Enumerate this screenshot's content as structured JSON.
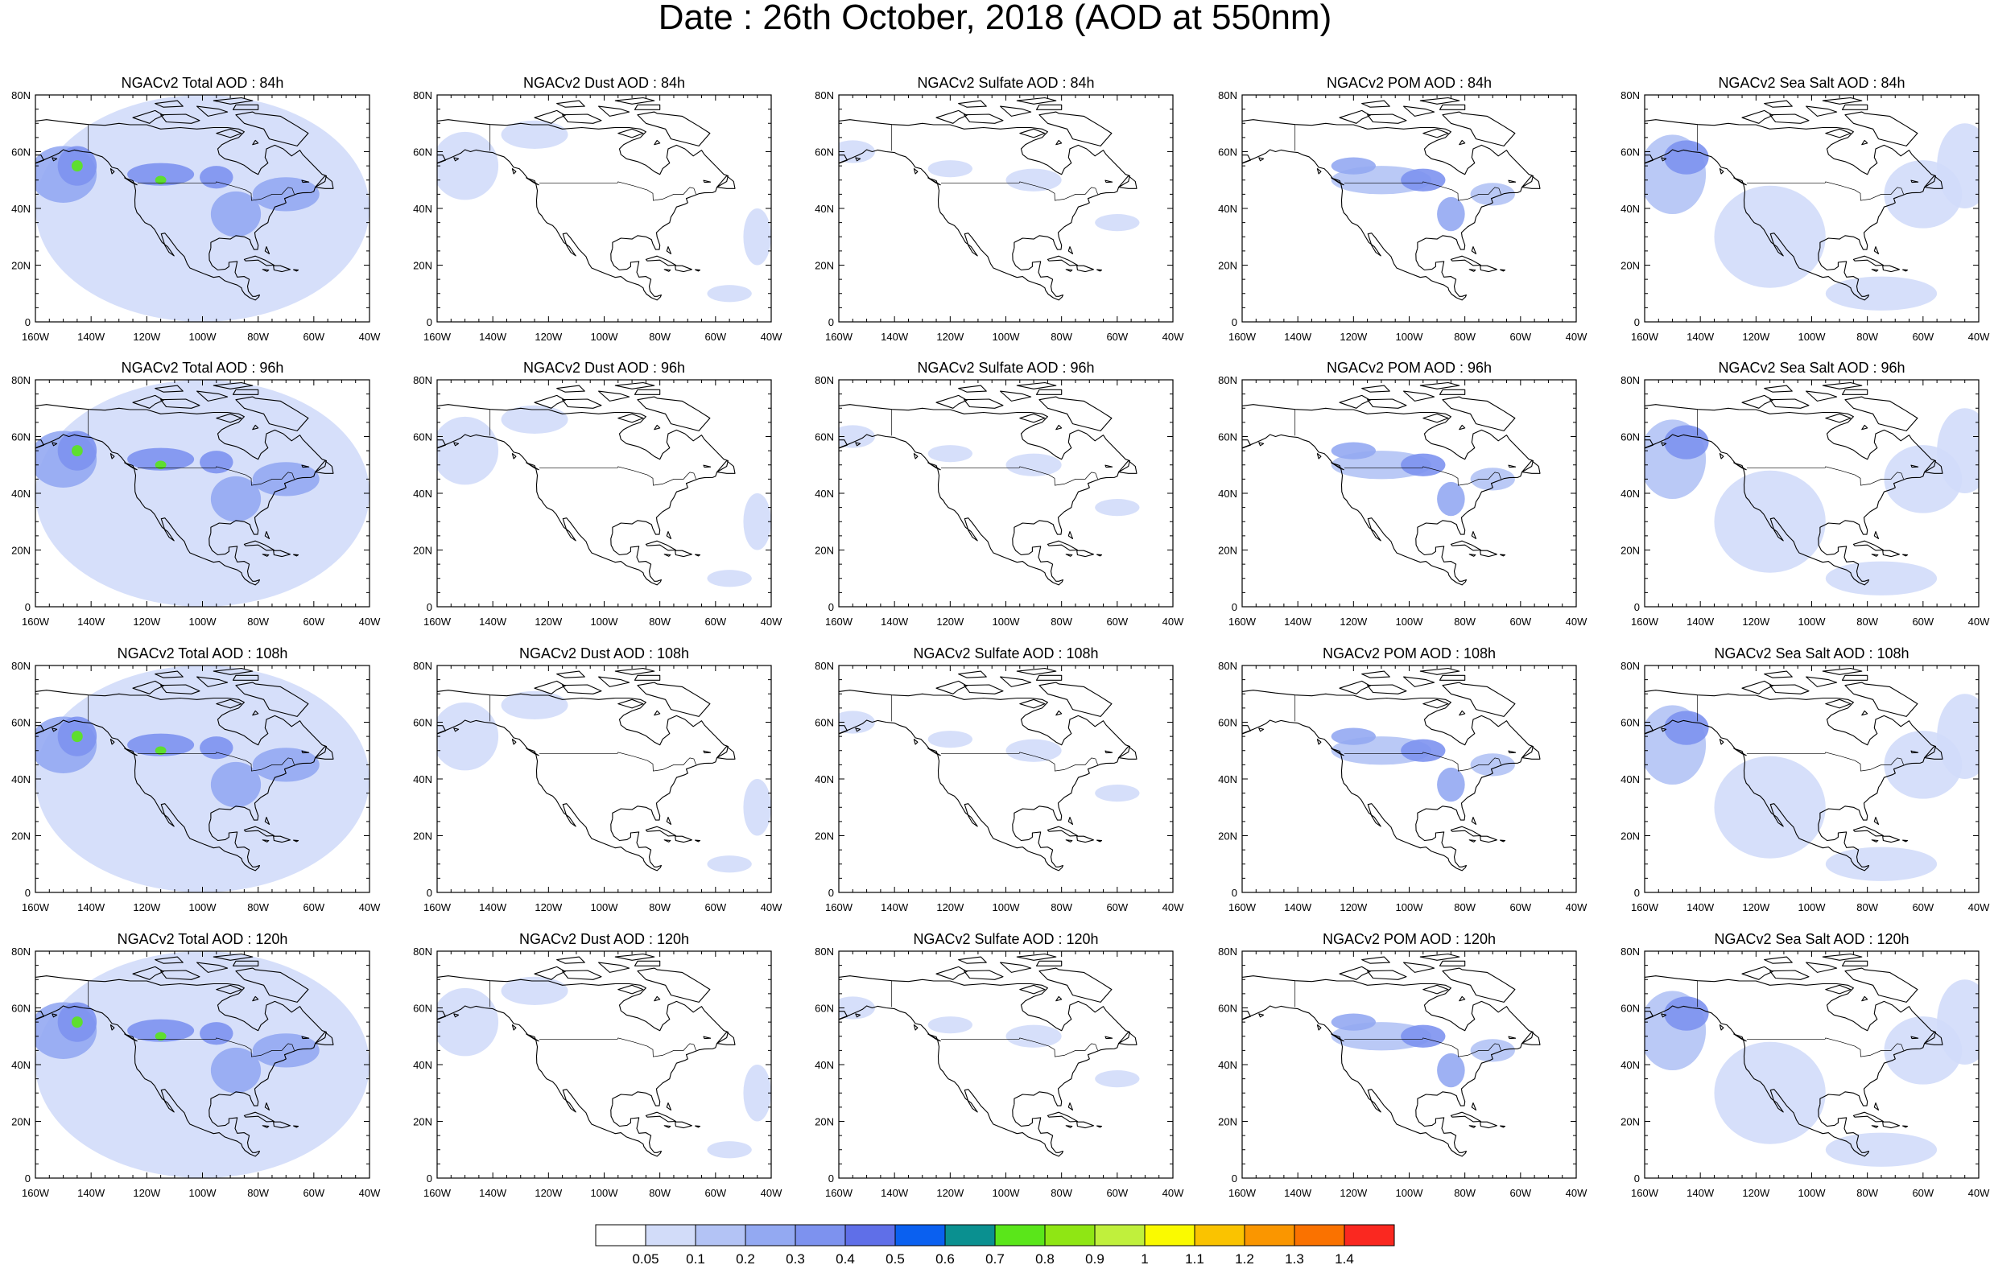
{
  "title": "Date : 26th October, 2018 (AOD at 550nm)",
  "lat_labels": [
    "0",
    "20N",
    "40N",
    "60N",
    "80N"
  ],
  "lon_labels": [
    "160W",
    "140W",
    "120W",
    "100W",
    "80W",
    "60W",
    "40W"
  ],
  "panels": [
    {
      "title": "NGACv2 Total AOD : 84h",
      "species": "total",
      "forecast_hour": 84
    },
    {
      "title": "NGACv2 Dust AOD : 84h",
      "species": "dust",
      "forecast_hour": 84
    },
    {
      "title": "NGACv2 Sulfate AOD : 84h",
      "species": "sulfate",
      "forecast_hour": 84
    },
    {
      "title": "NGACv2 POM AOD : 84h",
      "species": "pom",
      "forecast_hour": 84
    },
    {
      "title": "NGACv2 Sea Salt AOD : 84h",
      "species": "seasalt",
      "forecast_hour": 84
    },
    {
      "title": "NGACv2 Total AOD : 96h",
      "species": "total",
      "forecast_hour": 96
    },
    {
      "title": "NGACv2 Dust AOD : 96h",
      "species": "dust",
      "forecast_hour": 96
    },
    {
      "title": "NGACv2 Sulfate AOD : 96h",
      "species": "sulfate",
      "forecast_hour": 96
    },
    {
      "title": "NGACv2 POM AOD : 96h",
      "species": "pom",
      "forecast_hour": 96
    },
    {
      "title": "NGACv2 Sea Salt AOD : 96h",
      "species": "seasalt",
      "forecast_hour": 96
    },
    {
      "title": "NGACv2 Total AOD : 108h",
      "species": "total",
      "forecast_hour": 108
    },
    {
      "title": "NGACv2 Dust AOD : 108h",
      "species": "dust",
      "forecast_hour": 108
    },
    {
      "title": "NGACv2 Sulfate AOD : 108h",
      "species": "sulfate",
      "forecast_hour": 108
    },
    {
      "title": "NGACv2 POM AOD : 108h",
      "species": "pom",
      "forecast_hour": 108
    },
    {
      "title": "NGACv2 Sea Salt AOD : 108h",
      "species": "seasalt",
      "forecast_hour": 108
    },
    {
      "title": "NGACv2 Total AOD : 120h",
      "species": "total",
      "forecast_hour": 120
    },
    {
      "title": "NGACv2 Dust AOD : 120h",
      "species": "dust",
      "forecast_hour": 120
    },
    {
      "title": "NGACv2 Sulfate AOD : 120h",
      "species": "sulfate",
      "forecast_hour": 120
    },
    {
      "title": "NGACv2 POM AOD : 120h",
      "species": "pom",
      "forecast_hour": 120
    },
    {
      "title": "NGACv2 Sea Salt  AOD : 120h",
      "species": "seasalt",
      "forecast_hour": 120
    }
  ],
  "colorbar": {
    "labels": [
      "0.05",
      "0.1",
      "0.2",
      "0.3",
      "0.4",
      "0.5",
      "0.6",
      "0.7",
      "0.8",
      "0.9",
      "1",
      "1.1",
      "1.2",
      "1.3",
      "1.4"
    ],
    "colors": [
      "#ffffff",
      "#d2dcf9",
      "#b3c3f5",
      "#93a9f2",
      "#7d92ef",
      "#5f6fe8",
      "#0a60f0",
      "#0a9090",
      "#5ae61a",
      "#8fe614",
      "#c0f03c",
      "#fafa00",
      "#fac300",
      "#fa9600",
      "#fa7200",
      "#fa2820"
    ]
  }
}
